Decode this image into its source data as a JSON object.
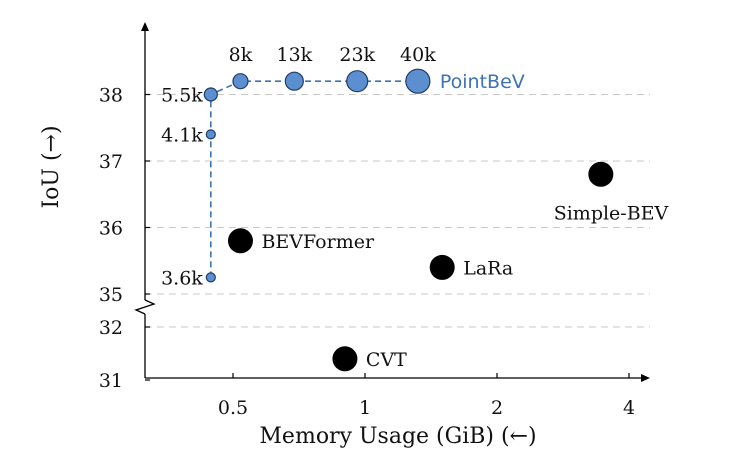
{
  "chart_data": {
    "type": "scatter",
    "xlabel": "Memory Usage (GiB) (←)",
    "ylabel": "IoU (→)",
    "x_scale": "log2",
    "x_ticks": [
      {
        "value": 0.5,
        "label": "0.5"
      },
      {
        "value": 1,
        "label": "1"
      },
      {
        "value": 2,
        "label": "2"
      },
      {
        "value": 4,
        "label": "4"
      }
    ],
    "y_ticks": [
      {
        "value": 31,
        "label": "31"
      },
      {
        "value": 32,
        "label": "32"
      },
      {
        "value": 35,
        "label": "35"
      },
      {
        "value": 36,
        "label": "36"
      },
      {
        "value": 37,
        "label": "37"
      },
      {
        "value": 38,
        "label": "38"
      }
    ],
    "y_axis_break": [
      32,
      35
    ],
    "grid": "horizontal dashed",
    "series": [
      {
        "name": "PointBeV",
        "color": "#3d73b4",
        "fill": "#5b8fd0",
        "line": "dashed",
        "points": [
          {
            "x": 0.445,
            "y": 35.25,
            "label": "3.6k"
          },
          {
            "x": 0.445,
            "y": 37.4,
            "label": "4.1k"
          },
          {
            "x": 0.445,
            "y": 38.0,
            "label": "5.5k"
          },
          {
            "x": 0.52,
            "y": 38.2,
            "label": "8k"
          },
          {
            "x": 0.69,
            "y": 38.2,
            "label": "13k"
          },
          {
            "x": 0.96,
            "y": 38.2,
            "label": "23k"
          },
          {
            "x": 1.32,
            "y": 38.2,
            "label": "40k"
          }
        ]
      }
    ],
    "other_methods": [
      {
        "name": "BEVFormer",
        "x": 0.52,
        "y": 35.8
      },
      {
        "name": "LaRa",
        "x": 1.5,
        "y": 35.4
      },
      {
        "name": "Simple-BEV",
        "x": 3.45,
        "y": 36.8
      },
      {
        "name": "CVT",
        "x": 0.9,
        "y": 31.4
      }
    ]
  }
}
